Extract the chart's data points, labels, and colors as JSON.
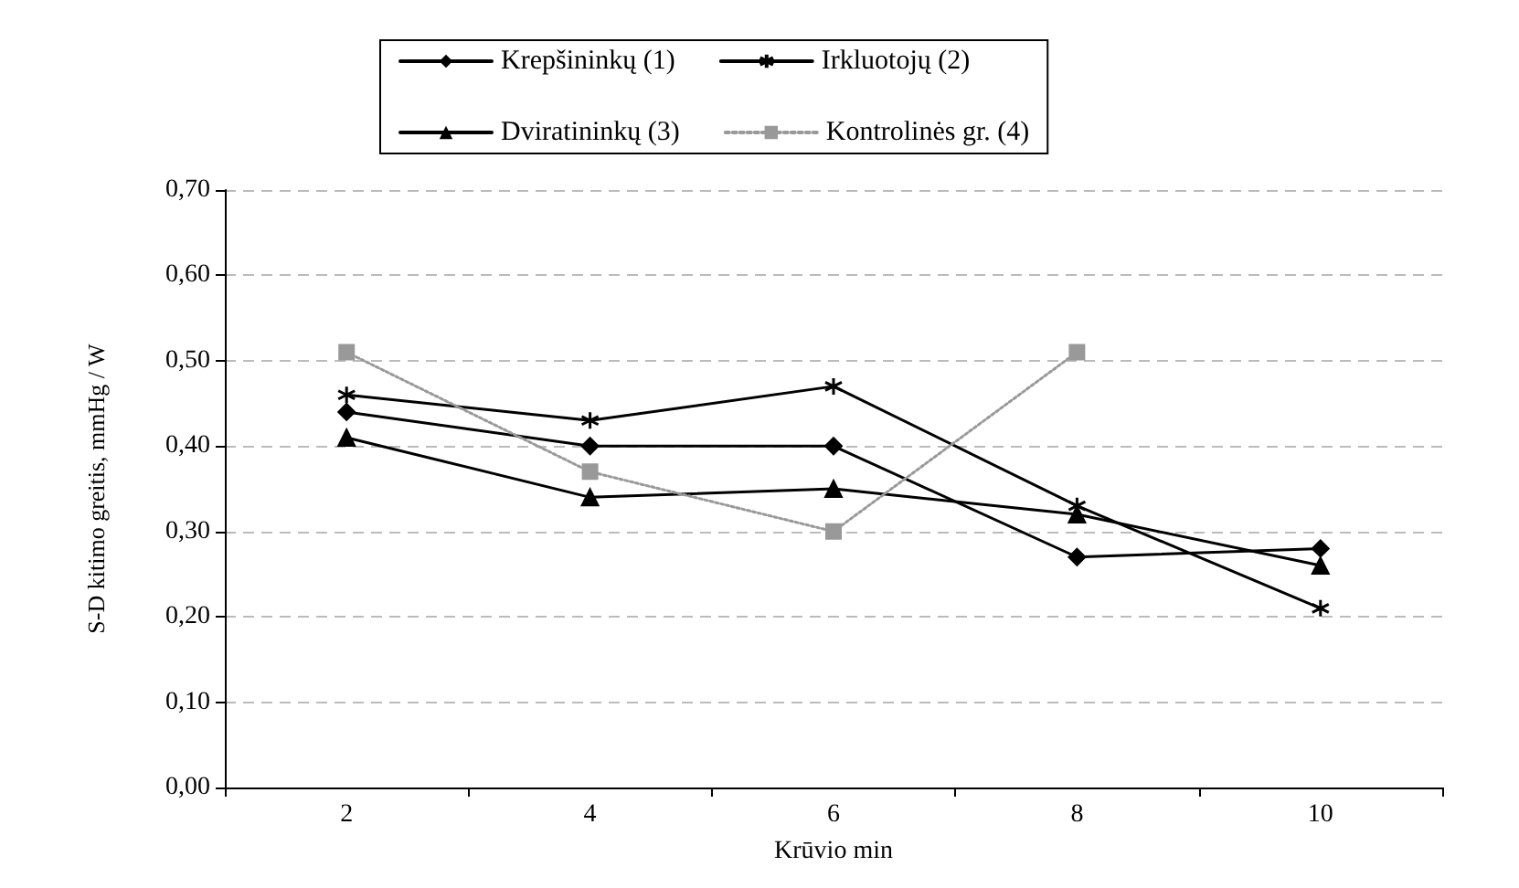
{
  "chart_data": {
    "type": "line",
    "xlabel": "Krūvio min",
    "ylabel": "S-D kitimo greitis, mmHg / W",
    "categories": [
      "2",
      "4",
      "6",
      "8",
      "10"
    ],
    "series": [
      {
        "name": "Krepšininkų (1)",
        "color": "#000000",
        "marker": "diamond",
        "line_style": "solid",
        "values": [
          0.44,
          0.4,
          0.4,
          0.27,
          0.28
        ]
      },
      {
        "name": "Irkluotojų (2)",
        "color": "#000000",
        "marker": "cross",
        "line_style": "solid",
        "values": [
          0.46,
          0.43,
          0.47,
          0.33,
          0.21
        ]
      },
      {
        "name": "Dviratininkų (3)",
        "color": "#000000",
        "marker": "triangle",
        "line_style": "solid",
        "values": [
          0.41,
          0.34,
          0.35,
          0.32,
          0.26
        ]
      },
      {
        "name": "Kontrolinės gr. (4)",
        "color": "#999999",
        "marker": "square",
        "line_style": "dotted",
        "values": [
          0.51,
          0.37,
          0.3,
          0.51,
          null
        ]
      }
    ],
    "ylim": [
      0,
      0.7
    ],
    "yticks": [
      {
        "value": 0,
        "label": "0,00"
      },
      {
        "value": 0.1,
        "label": "0,10"
      },
      {
        "value": 0.2,
        "label": "0,20"
      },
      {
        "value": 0.3,
        "label": "0,30"
      },
      {
        "value": 0.4,
        "label": "0,40"
      },
      {
        "value": 0.5,
        "label": "0,50"
      },
      {
        "value": 0.6,
        "label": "0,60"
      },
      {
        "value": 0.7,
        "label": "0,70"
      }
    ],
    "grid": "y",
    "legend": "top"
  }
}
